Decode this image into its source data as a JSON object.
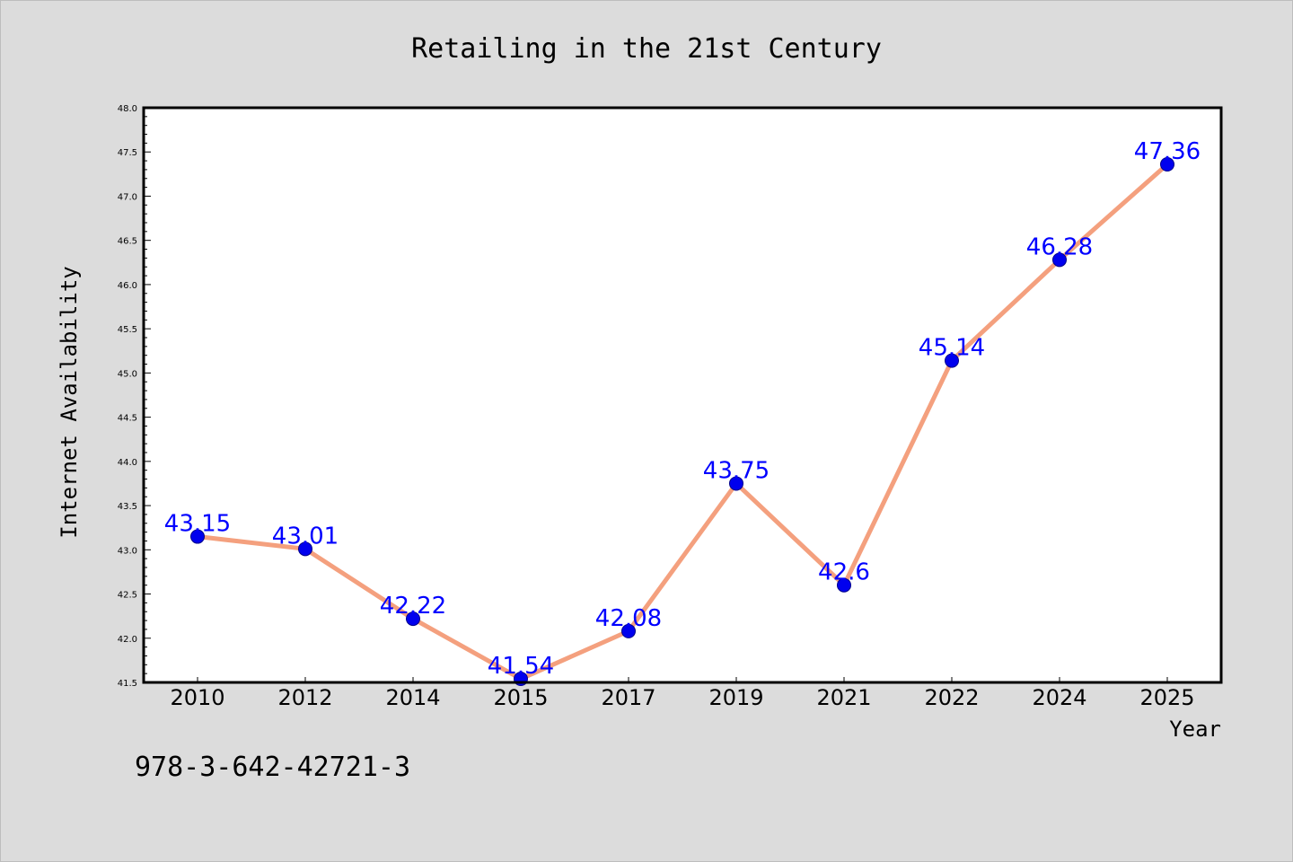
{
  "chart_data": {
    "type": "line",
    "title": "Retailing in the 21st Century",
    "xlabel": "Year",
    "ylabel": "Internet Availability",
    "categories": [
      "2010",
      "2012",
      "2014",
      "2015",
      "2017",
      "2019",
      "2021",
      "2022",
      "2024",
      "2025"
    ],
    "values": [
      43.15,
      43.01,
      42.22,
      41.54,
      42.08,
      43.75,
      42.6,
      45.14,
      46.28,
      47.36
    ],
    "value_labels": [
      "43.15",
      "43.01",
      "42.22",
      "41.54",
      "42.08",
      "43.75",
      "42.6",
      "45.14",
      "46.28",
      "47.36"
    ],
    "ylim": [
      41.5,
      48.0
    ],
    "yticks": [
      "41.5",
      "42.0",
      "42.5",
      "43.0",
      "43.5",
      "44.0",
      "44.5",
      "45.0",
      "45.5",
      "46.0",
      "46.5",
      "47.0",
      "47.5",
      "48.0"
    ],
    "grid": false,
    "legend": "none"
  },
  "caption": "978-3-642-42721-3",
  "colors": {
    "background": "#dcdcdc",
    "plot_background": "#ffffff",
    "line": "#f4a07e",
    "marker": "#0000ee",
    "marker_edge": "#00008b",
    "data_label": "#0000ff"
  }
}
